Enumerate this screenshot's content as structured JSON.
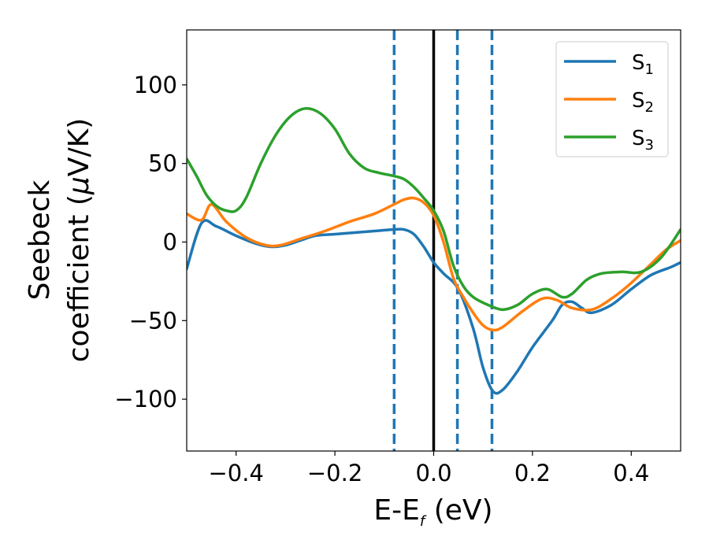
{
  "chart_data": {
    "type": "line",
    "xlabel": "E-E",
    "xlabel_sub": "f",
    "xlabel_unit": " (eV)",
    "ylabel_line1": "Seebeck",
    "ylabel_line2_pre": "coefficient  (",
    "ylabel_mu": "μ",
    "ylabel_line2_post": "V/K)",
    "xlim": [
      -0.5,
      0.5
    ],
    "ylim": [
      -133,
      135
    ],
    "xticks": [
      -0.4,
      -0.2,
      0.0,
      0.2,
      0.4
    ],
    "xtick_labels": [
      "−0.4",
      "−0.2",
      "0.0",
      "0.2",
      "0.4"
    ],
    "yticks": [
      -100,
      -50,
      0,
      50,
      100
    ],
    "ytick_labels": [
      "−100",
      "−50",
      "0",
      "50",
      "100"
    ],
    "grid": false,
    "legend_position": "top-right",
    "vlines": [
      {
        "x": -0.08,
        "style": "dashed",
        "color": "#1f77b4"
      },
      {
        "x": 0.0,
        "style": "solid",
        "color": "#000000"
      },
      {
        "x": 0.048,
        "style": "dashed",
        "color": "#1f77b4"
      },
      {
        "x": 0.118,
        "style": "dashed",
        "color": "#1f77b4"
      }
    ],
    "series": [
      {
        "name": "S",
        "sub": "1",
        "color": "#1f77b4",
        "points": [
          [
            -0.5,
            -17
          ],
          [
            -0.47,
            12
          ],
          [
            -0.44,
            10
          ],
          [
            -0.4,
            4
          ],
          [
            -0.36,
            -1
          ],
          [
            -0.33,
            -3
          ],
          [
            -0.3,
            -2
          ],
          [
            -0.27,
            1
          ],
          [
            -0.24,
            4
          ],
          [
            -0.2,
            5
          ],
          [
            -0.16,
            6
          ],
          [
            -0.12,
            7
          ],
          [
            -0.08,
            8
          ],
          [
            -0.06,
            8
          ],
          [
            -0.04,
            5
          ],
          [
            -0.02,
            -3
          ],
          [
            0.0,
            -13
          ],
          [
            0.02,
            -20
          ],
          [
            0.05,
            -30
          ],
          [
            0.08,
            -55
          ],
          [
            0.1,
            -80
          ],
          [
            0.12,
            -95
          ],
          [
            0.14,
            -94
          ],
          [
            0.17,
            -82
          ],
          [
            0.2,
            -67
          ],
          [
            0.24,
            -50
          ],
          [
            0.26,
            -40
          ],
          [
            0.28,
            -38
          ],
          [
            0.3,
            -42
          ],
          [
            0.32,
            -45
          ],
          [
            0.36,
            -40
          ],
          [
            0.4,
            -30
          ],
          [
            0.44,
            -21
          ],
          [
            0.48,
            -16
          ],
          [
            0.5,
            -13
          ]
        ]
      },
      {
        "name": "S",
        "sub": "2",
        "color": "#ff7f0e",
        "points": [
          [
            -0.5,
            18
          ],
          [
            -0.47,
            14
          ],
          [
            -0.45,
            24
          ],
          [
            -0.42,
            13
          ],
          [
            -0.38,
            3
          ],
          [
            -0.34,
            -2
          ],
          [
            -0.31,
            -2
          ],
          [
            -0.27,
            2
          ],
          [
            -0.22,
            7
          ],
          [
            -0.17,
            13
          ],
          [
            -0.12,
            18
          ],
          [
            -0.08,
            24
          ],
          [
            -0.06,
            27
          ],
          [
            -0.04,
            28
          ],
          [
            -0.02,
            25
          ],
          [
            0.0,
            17
          ],
          [
            0.02,
            0
          ],
          [
            0.04,
            -23
          ],
          [
            0.06,
            -35
          ],
          [
            0.08,
            -45
          ],
          [
            0.1,
            -53
          ],
          [
            0.12,
            -56
          ],
          [
            0.14,
            -54
          ],
          [
            0.18,
            -44
          ],
          [
            0.22,
            -36
          ],
          [
            0.25,
            -37
          ],
          [
            0.28,
            -42
          ],
          [
            0.32,
            -43
          ],
          [
            0.36,
            -36
          ],
          [
            0.4,
            -26
          ],
          [
            0.44,
            -14
          ],
          [
            0.47,
            -5
          ],
          [
            0.5,
            1
          ]
        ]
      },
      {
        "name": "S",
        "sub": "3",
        "color": "#2ca02c",
        "points": [
          [
            -0.5,
            53
          ],
          [
            -0.48,
            42
          ],
          [
            -0.46,
            30
          ],
          [
            -0.44,
            23
          ],
          [
            -0.42,
            20
          ],
          [
            -0.4,
            20
          ],
          [
            -0.38,
            28
          ],
          [
            -0.35,
            50
          ],
          [
            -0.32,
            68
          ],
          [
            -0.29,
            80
          ],
          [
            -0.26,
            85
          ],
          [
            -0.23,
            82
          ],
          [
            -0.2,
            72
          ],
          [
            -0.17,
            56
          ],
          [
            -0.14,
            47
          ],
          [
            -0.11,
            44
          ],
          [
            -0.08,
            42
          ],
          [
            -0.06,
            40
          ],
          [
            -0.04,
            35
          ],
          [
            -0.02,
            28
          ],
          [
            0.0,
            20
          ],
          [
            0.02,
            7
          ],
          [
            0.04,
            -15
          ],
          [
            0.06,
            -28
          ],
          [
            0.08,
            -35
          ],
          [
            0.11,
            -40
          ],
          [
            0.14,
            -43
          ],
          [
            0.17,
            -40
          ],
          [
            0.2,
            -33
          ],
          [
            0.23,
            -30
          ],
          [
            0.26,
            -35
          ],
          [
            0.28,
            -33
          ],
          [
            0.31,
            -24
          ],
          [
            0.34,
            -20
          ],
          [
            0.38,
            -19
          ],
          [
            0.42,
            -19
          ],
          [
            0.46,
            -10
          ],
          [
            0.5,
            8
          ]
        ]
      }
    ]
  }
}
